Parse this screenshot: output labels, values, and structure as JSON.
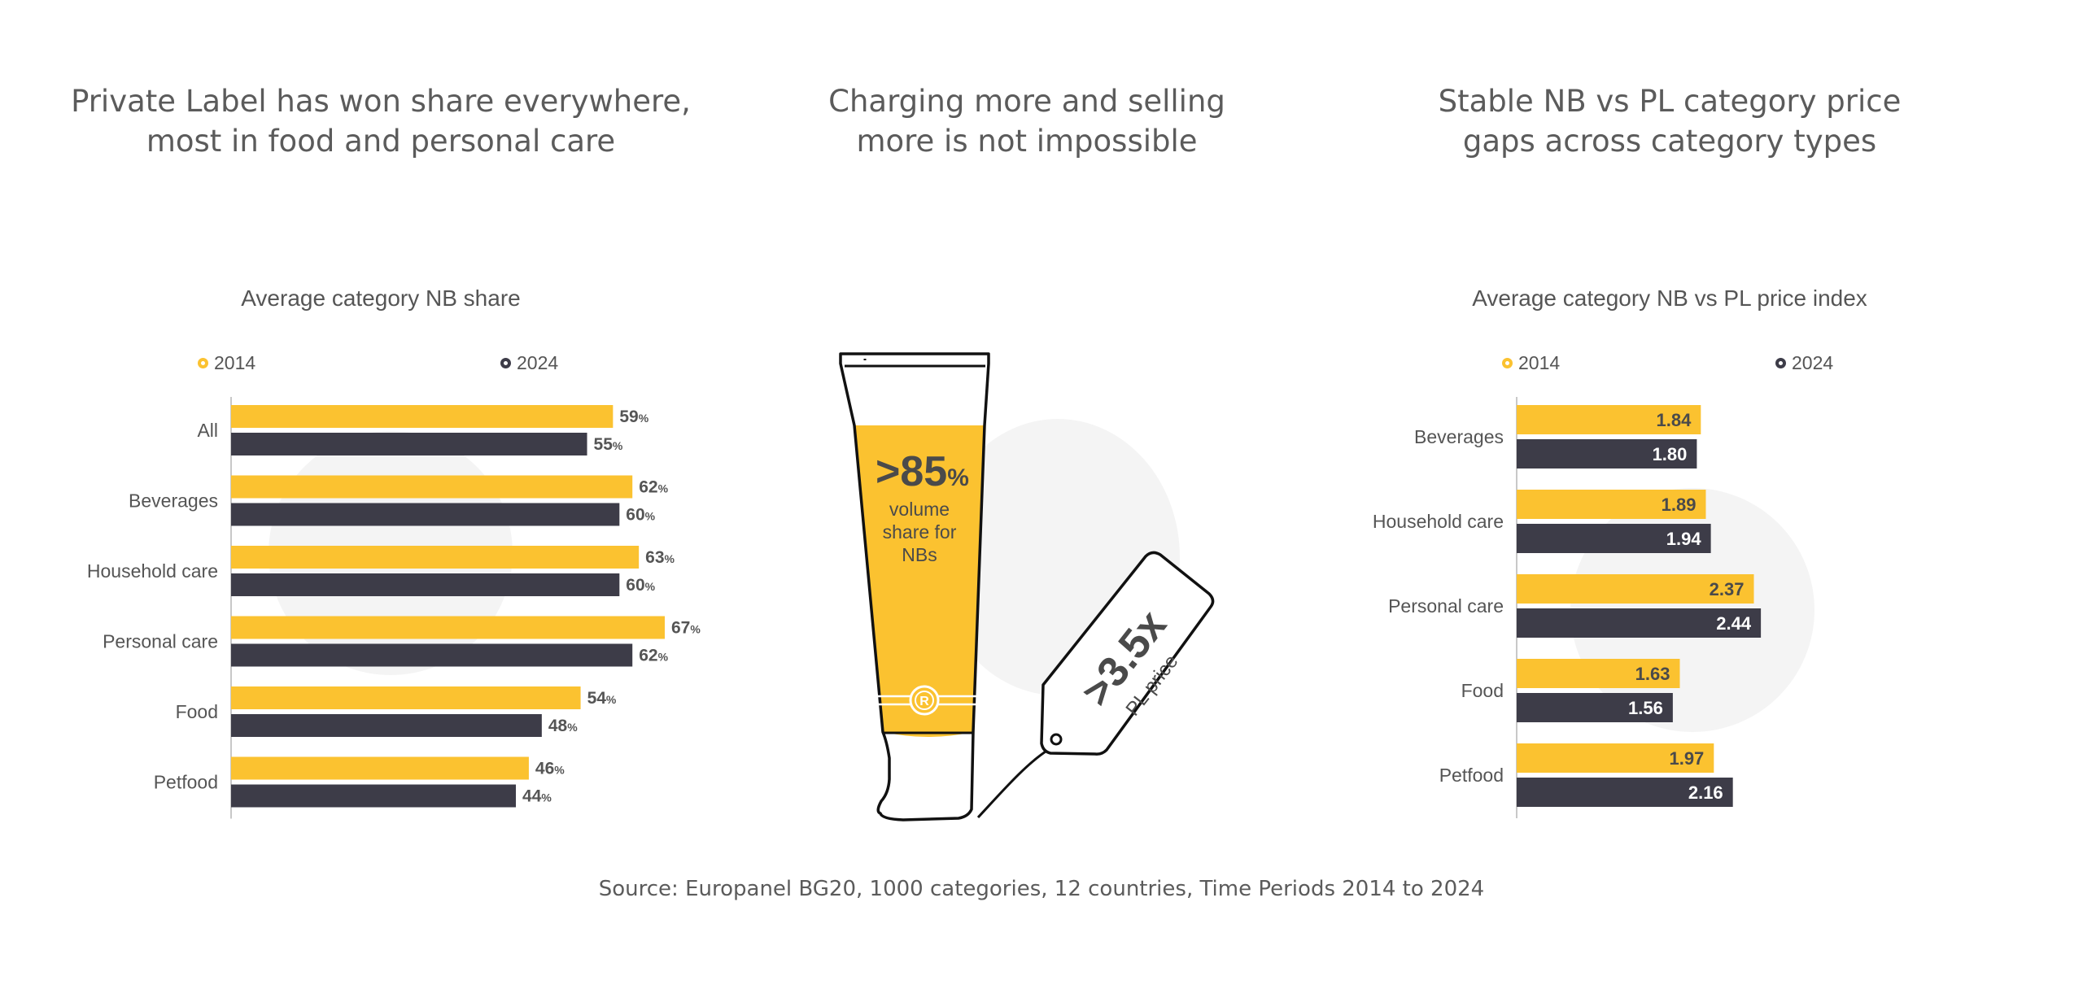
{
  "colors": {
    "y2014": "#fbc230",
    "y2024": "#3d3c48",
    "text": "#555555",
    "axis": "#c8c8c8"
  },
  "headlines": {
    "left": [
      "Private Label has won share everywhere,",
      "most in food and personal care"
    ],
    "center": [
      "Charging more and selling",
      "more is not impossible"
    ],
    "right": [
      "Stable NB vs PL category price",
      "gaps across category types"
    ]
  },
  "center_graphic": {
    "tube_big": ">85",
    "tube_pct": "%",
    "tube_caption": [
      "volume",
      "share for",
      "NBs"
    ],
    "tube_logo": "R",
    "tag_big": ">3.5x",
    "tag_caption": "PL price"
  },
  "source": "Source: Europanel BG20, 1000 categories, 12 countries, Time Periods 2014 to 2024",
  "chart_data": [
    {
      "type": "bar",
      "orientation": "horizontal",
      "title": "Average category NB share",
      "categories": [
        "All",
        "Beverages",
        "Household care",
        "Personal care",
        "Food",
        "Petfood"
      ],
      "series": [
        {
          "name": "2014",
          "values": [
            59,
            62,
            63,
            67,
            54,
            46
          ]
        },
        {
          "name": "2024",
          "values": [
            55,
            60,
            60,
            62,
            48,
            44
          ]
        }
      ],
      "value_suffix": "%",
      "labels_outside": true,
      "xlim": [
        0,
        80
      ],
      "grid": false,
      "legend_position": "top"
    },
    {
      "type": "bar",
      "orientation": "horizontal",
      "title": "Average category NB vs PL price index",
      "categories": [
        "Beverages",
        "Household care",
        "Personal care",
        "Food",
        "Petfood"
      ],
      "series": [
        {
          "name": "2014",
          "values": [
            1.84,
            1.89,
            2.37,
            1.63,
            1.97
          ]
        },
        {
          "name": "2024",
          "values": [
            1.8,
            1.94,
            2.44,
            1.56,
            2.16
          ]
        }
      ],
      "decimals": 2,
      "labels_outside": false,
      "xlim": [
        0,
        2.8
      ],
      "grid": false,
      "legend_position": "top"
    }
  ]
}
